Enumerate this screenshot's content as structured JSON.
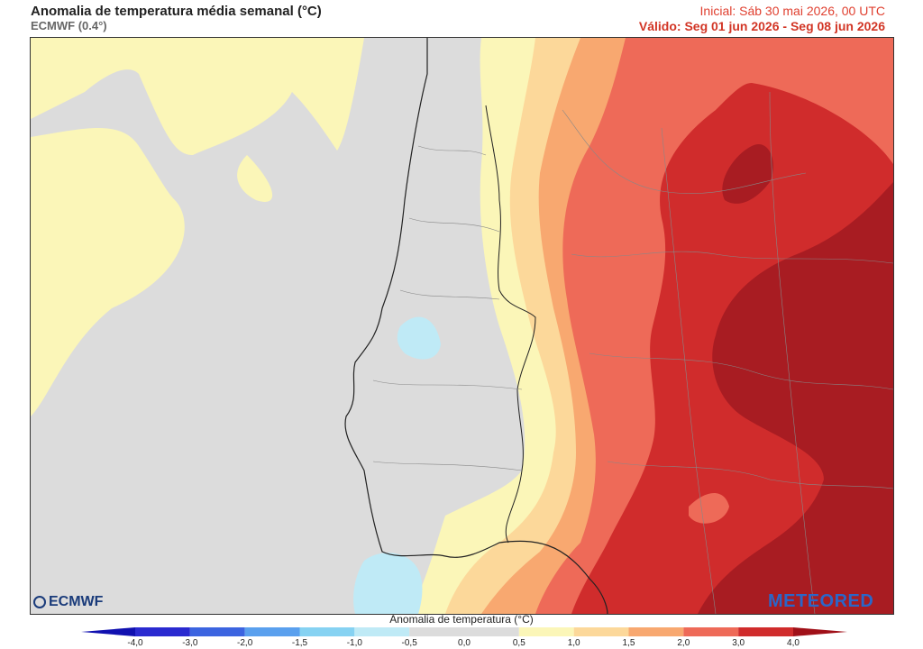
{
  "header": {
    "title": "Anomalia de temperatura média semanal (°C)",
    "model": "ECMWF (0.4°)",
    "initial": "Inicial: Sáb 30 mai 2026, 00 UTC",
    "valid": "Válido: Seg 01 jun 2026 - Seg 08 jun 2026"
  },
  "logos": {
    "left": "ECMWF",
    "right": "METEORED"
  },
  "colorbar": {
    "title": "Anomalia de temperatura (°C)",
    "ticks": [
      "-4,0",
      "-3,0",
      "-2,0",
      "-1,5",
      "-1,0",
      "-0,5",
      "0,0",
      "0,5",
      "1,0",
      "1,5",
      "2,0",
      "3,0",
      "4,0"
    ],
    "colors": [
      "#2a2ad0",
      "#3c64e0",
      "#5aa0ee",
      "#86d2f2",
      "#bfeaf6",
      "#dcdcdc",
      "#dcdcdc",
      "#fbf6b8",
      "#fcd89a",
      "#f8a870",
      "#ee6a58",
      "#d02c2c"
    ]
  },
  "map": {
    "region": "Portugal / Península Ibérica",
    "colors": {
      "neutral": "#dcdcdc",
      "light_yellow": "#fbf6b8",
      "light_orange": "#fcd89a",
      "orange": "#f8a870",
      "red": "#ee6a58",
      "dark_red": "#d02c2c",
      "darkest_red": "#a81c22",
      "light_blue": "#bfeaf6"
    }
  }
}
